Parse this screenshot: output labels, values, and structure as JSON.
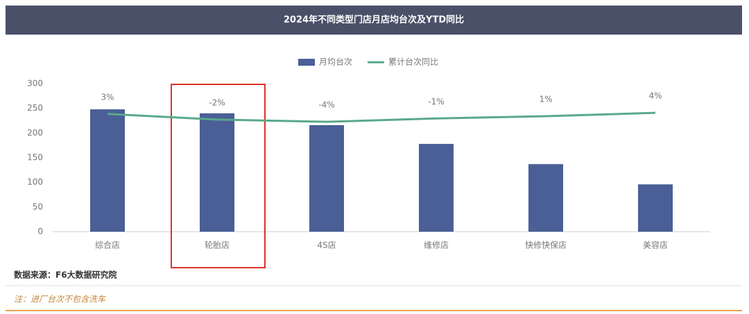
{
  "chart_data": {
    "type": "bar",
    "title": "2024年不同类型门店月店均台次及YTD同比",
    "categories": [
      "综合店",
      "轮胎店",
      "4S店",
      "维修店",
      "快修快保店",
      "美容店"
    ],
    "series": [
      {
        "name": "月均台次",
        "type": "bar",
        "color": "#4a5f96",
        "values": [
          248,
          240,
          216,
          178,
          137,
          96
        ]
      },
      {
        "name": "累计台次同比",
        "type": "line",
        "axis": "y2",
        "color": "#5aa88a",
        "values": [
          3,
          -2,
          -4,
          -1,
          1,
          4
        ],
        "value_labels": [
          "3%",
          "-2%",
          "-4%",
          "-1%",
          "1%",
          "4%"
        ]
      }
    ],
    "ylim": [
      0,
      300
    ],
    "yticks": [
      0,
      50,
      100,
      150,
      200,
      250,
      300
    ],
    "y2lim": [
      -102,
      30
    ],
    "grid": false,
    "legend": "top",
    "source": "数据来源：F6大数据研究院",
    "note": "注：进厂台次不包含洗车"
  }
}
